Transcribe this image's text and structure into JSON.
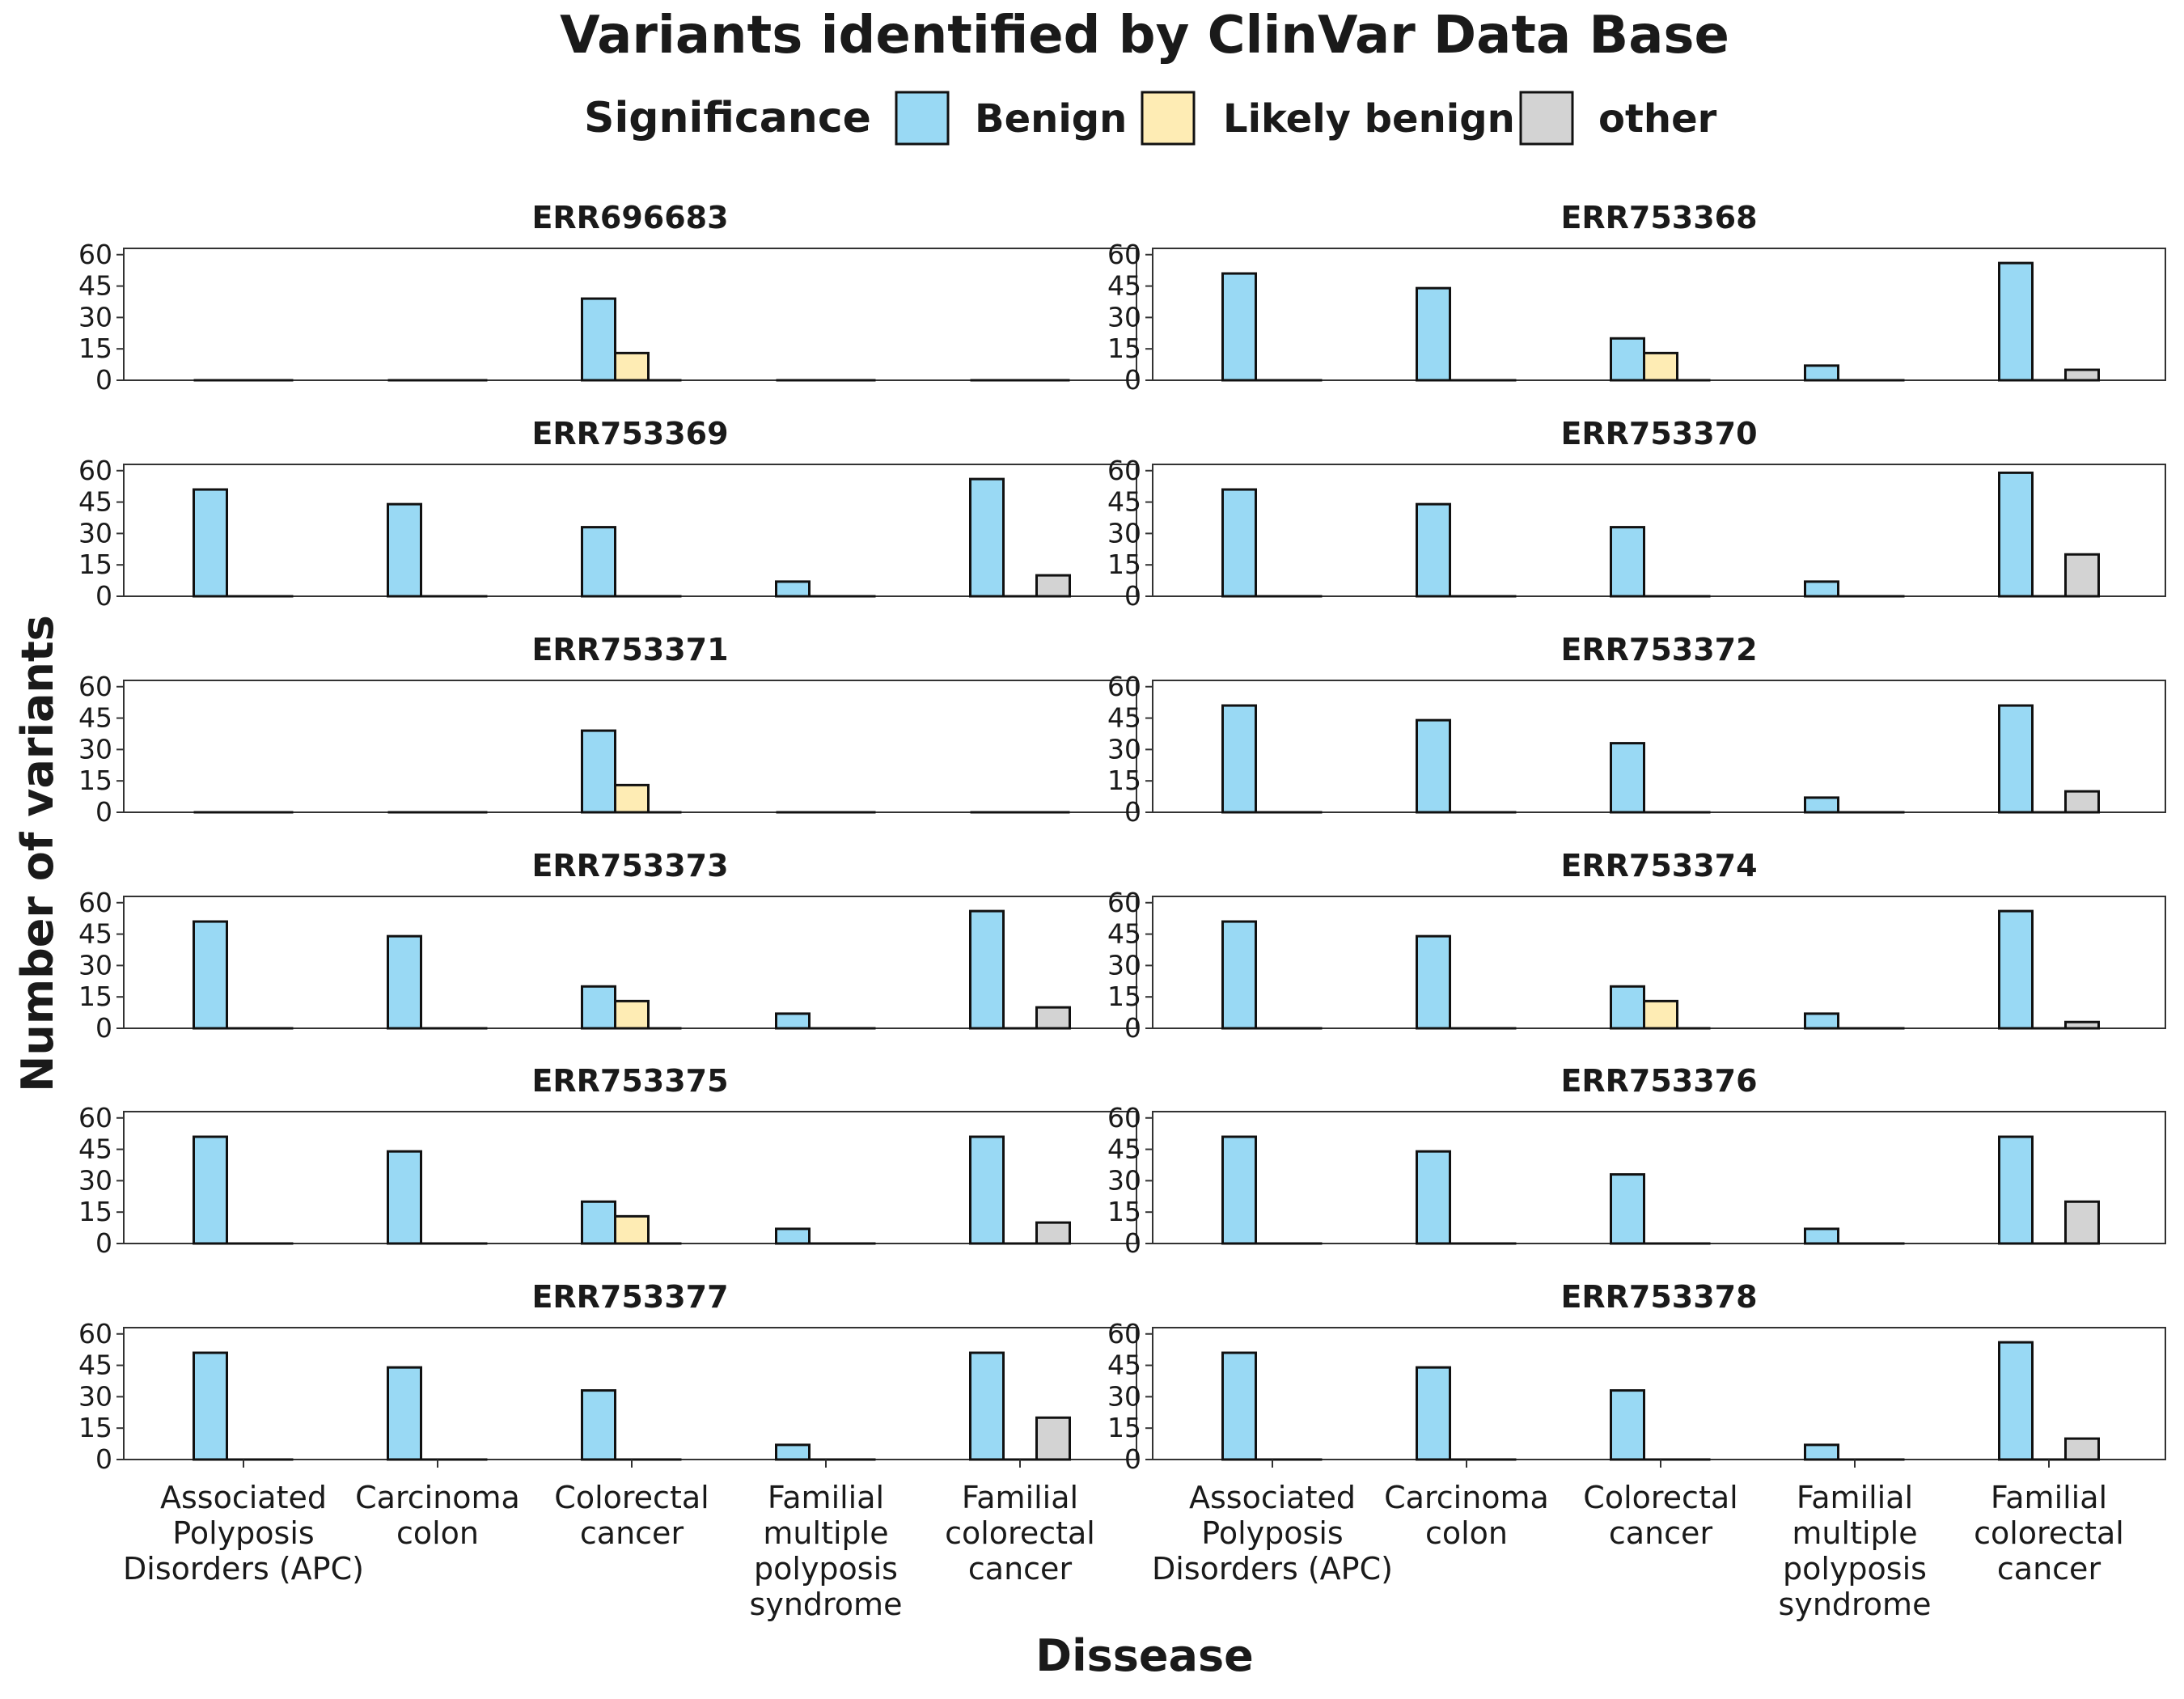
{
  "chart_data": {
    "type": "bar",
    "title": "Variants identified by ClinVar Data Base",
    "xlabel": "Dissease",
    "ylabel": "Number of variants",
    "ylim": [
      0,
      63
    ],
    "yticks": [
      0,
      15,
      30,
      45,
      60
    ],
    "grid": false,
    "legend": {
      "title": "Significance",
      "placement": "top",
      "entries": [
        {
          "name": "Benign",
          "color": "#99D9F4"
        },
        {
          "name": "Likely benign",
          "color": "#FEECB4"
        },
        {
          "name": "other",
          "color": "#D3D3D3"
        }
      ]
    },
    "categories": [
      "Associated Polyposis Disorders (APC)",
      "Carcinoma colon",
      "Colorectal cancer",
      "Familial multiple polyposis syndrome",
      "Familial colorectal cancer"
    ],
    "category_lines": [
      [
        "Associated",
        "Polyposis",
        "Disorders (APC)"
      ],
      [
        "Carcinoma",
        "colon"
      ],
      [
        "Colorectal",
        "cancer"
      ],
      [
        "Familial",
        "multiple",
        "polyposis",
        "syndrome"
      ],
      [
        "Familial",
        "colorectal",
        "cancer"
      ]
    ],
    "panels": [
      {
        "name": "ERR696683",
        "series": {
          "Benign": [
            0,
            0,
            39,
            0,
            0
          ],
          "Likely benign": [
            0,
            0,
            13,
            0,
            0
          ],
          "other": [
            0,
            0,
            0,
            0,
            0
          ]
        }
      },
      {
        "name": "ERR753368",
        "series": {
          "Benign": [
            51,
            44,
            20,
            7,
            56
          ],
          "Likely benign": [
            0,
            0,
            13,
            0,
            0
          ],
          "other": [
            0,
            0,
            0,
            0,
            5
          ]
        }
      },
      {
        "name": "ERR753369",
        "series": {
          "Benign": [
            51,
            44,
            33,
            7,
            56
          ],
          "Likely benign": [
            0,
            0,
            0,
            0,
            0
          ],
          "other": [
            0,
            0,
            0,
            0,
            10
          ]
        }
      },
      {
        "name": "ERR753370",
        "series": {
          "Benign": [
            51,
            44,
            33,
            7,
            59
          ],
          "Likely benign": [
            0,
            0,
            0,
            0,
            0
          ],
          "other": [
            0,
            0,
            0,
            0,
            20
          ]
        }
      },
      {
        "name": "ERR753371",
        "series": {
          "Benign": [
            0,
            0,
            39,
            0,
            0
          ],
          "Likely benign": [
            0,
            0,
            13,
            0,
            0
          ],
          "other": [
            0,
            0,
            0,
            0,
            0
          ]
        }
      },
      {
        "name": "ERR753372",
        "series": {
          "Benign": [
            51,
            44,
            33,
            7,
            51
          ],
          "Likely benign": [
            0,
            0,
            0,
            0,
            0
          ],
          "other": [
            0,
            0,
            0,
            0,
            10
          ]
        }
      },
      {
        "name": "ERR753373",
        "series": {
          "Benign": [
            51,
            44,
            20,
            7,
            56
          ],
          "Likely benign": [
            0,
            0,
            13,
            0,
            0
          ],
          "other": [
            0,
            0,
            0,
            0,
            10
          ]
        }
      },
      {
        "name": "ERR753374",
        "series": {
          "Benign": [
            51,
            44,
            20,
            7,
            56
          ],
          "Likely benign": [
            0,
            0,
            13,
            0,
            0
          ],
          "other": [
            0,
            0,
            0,
            0,
            3
          ]
        }
      },
      {
        "name": "ERR753375",
        "series": {
          "Benign": [
            51,
            44,
            20,
            7,
            51
          ],
          "Likely benign": [
            0,
            0,
            13,
            0,
            0
          ],
          "other": [
            0,
            0,
            0,
            0,
            10
          ]
        }
      },
      {
        "name": "ERR753376",
        "series": {
          "Benign": [
            51,
            44,
            33,
            7,
            51
          ],
          "Likely benign": [
            0,
            0,
            0,
            0,
            0
          ],
          "other": [
            0,
            0,
            0,
            0,
            20
          ]
        }
      },
      {
        "name": "ERR753377",
        "series": {
          "Benign": [
            51,
            44,
            33,
            7,
            51
          ],
          "Likely benign": [
            0,
            0,
            0,
            0,
            0
          ],
          "other": [
            0,
            0,
            0,
            0,
            20
          ]
        }
      },
      {
        "name": "ERR753378",
        "series": {
          "Benign": [
            51,
            44,
            33,
            7,
            56
          ],
          "Likely benign": [
            0,
            0,
            0,
            0,
            0
          ],
          "other": [
            0,
            0,
            0,
            0,
            10
          ]
        }
      }
    ]
  }
}
